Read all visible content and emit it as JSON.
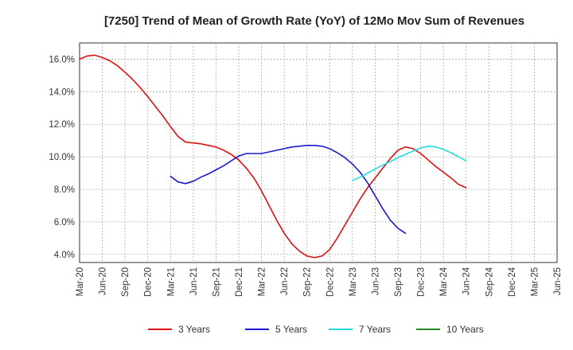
{
  "chart_data": {
    "type": "line",
    "title": "[7250]  Trend of Mean of Growth Rate (YoY) of 12Mo Mov Sum of Revenues",
    "xlabel": "",
    "ylabel": "",
    "ylim": [
      3.5,
      17.0
    ],
    "y_ticks": [
      4.0,
      6.0,
      8.0,
      10.0,
      12.0,
      14.0,
      16.0
    ],
    "y_tick_labels": [
      "4.0%",
      "6.0%",
      "8.0%",
      "10.0%",
      "12.0%",
      "14.0%",
      "16.0%"
    ],
    "x_tick_labels": [
      "Mar-20",
      "Jun-20",
      "Sep-20",
      "Dec-20",
      "Mar-21",
      "Jun-21",
      "Sep-21",
      "Dec-21",
      "Mar-22",
      "Jun-22",
      "Sep-22",
      "Dec-22",
      "Mar-23",
      "Jun-23",
      "Sep-23",
      "Dec-23",
      "Mar-24",
      "Jun-24",
      "Sep-24",
      "Dec-24",
      "Mar-25",
      "Jun-25"
    ],
    "grid": true,
    "legend_position": "bottom",
    "series": [
      {
        "name": "3 Years",
        "color": "#dd1111",
        "start_index": 0,
        "values": [
          16.0,
          16.2,
          16.25,
          16.1,
          15.9,
          15.6,
          15.2,
          14.75,
          14.25,
          13.7,
          13.1,
          12.5,
          11.85,
          11.25,
          10.9,
          10.85,
          10.8,
          10.7,
          10.6,
          10.4,
          10.15,
          9.8,
          9.3,
          8.7,
          7.9,
          7.0,
          6.1,
          5.3,
          4.65,
          4.2,
          3.9,
          3.8,
          3.9,
          4.3,
          5.0,
          5.8,
          6.6,
          7.4,
          8.1,
          8.7,
          9.3,
          9.9,
          10.4,
          10.6,
          10.5,
          10.2,
          9.8,
          9.4,
          9.05,
          8.7,
          8.3,
          8.1
        ]
      },
      {
        "name": "5 Years",
        "color": "#1a1acc",
        "start_index": 12,
        "values": [
          8.8,
          8.45,
          8.35,
          8.5,
          8.75,
          8.95,
          9.2,
          9.45,
          9.75,
          10.05,
          10.2,
          10.2,
          10.2,
          10.3,
          10.4,
          10.5,
          10.6,
          10.65,
          10.7,
          10.7,
          10.65,
          10.5,
          10.25,
          9.95,
          9.55,
          9.05,
          8.4,
          7.6,
          6.8,
          6.1,
          5.6,
          5.3
        ]
      },
      {
        "name": "7 Years",
        "color": "#22dddd",
        "start_index": 36,
        "values": [
          8.55,
          8.75,
          9.0,
          9.25,
          9.5,
          9.7,
          9.95,
          10.15,
          10.35,
          10.55,
          10.65,
          10.6,
          10.45,
          10.25,
          10.0,
          9.75
        ]
      },
      {
        "name": "10 Years",
        "color": "#228822",
        "start_index": 0,
        "values": []
      }
    ]
  }
}
